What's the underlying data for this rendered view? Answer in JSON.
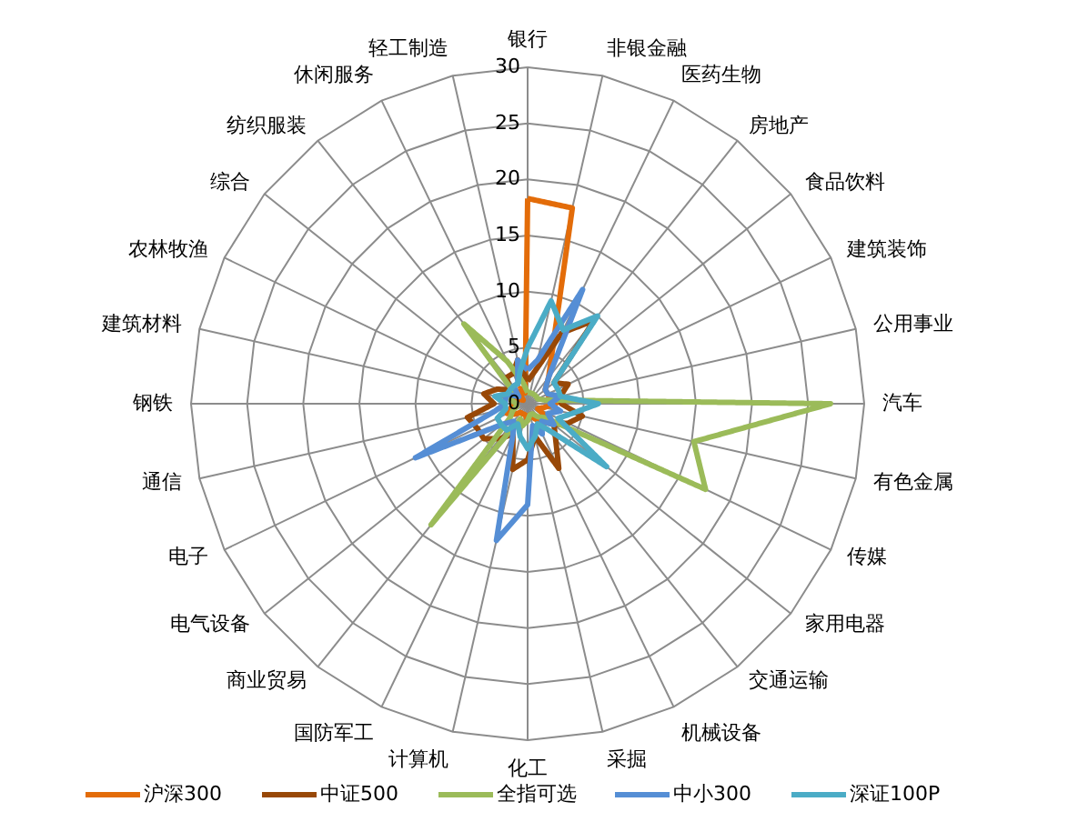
{
  "chart_data": {
    "type": "radar",
    "categories": [
      "银行",
      "非银金融",
      "医药生物",
      "房地产",
      "食品饮料",
      "建筑装饰",
      "公用事业",
      "汽车",
      "有色金属",
      "传媒",
      "家用电器",
      "交通运输",
      "机械设备",
      "采掘",
      "化工",
      "计算机",
      "国防军工",
      "商业贸易",
      "电气设备",
      "电子",
      "通信",
      "钢铁",
      "建筑材料",
      "农林牧渔",
      "综合",
      "纺织服装",
      "休闲服务",
      "轻工制造"
    ],
    "series": [
      {
        "name": "沪深300",
        "color": "#e36c09",
        "values": [
          18.3,
          17.9,
          5,
          3,
          2,
          2,
          2,
          2.5,
          1.5,
          1,
          3,
          2,
          1.5,
          1,
          1.5,
          1,
          1,
          1,
          1.5,
          2,
          1.5,
          1,
          1.5,
          1,
          0.5,
          1,
          1.5,
          1
        ]
      },
      {
        "name": "中证500",
        "color": "#984807",
        "values": [
          2,
          3,
          7,
          9.5,
          3,
          4,
          3,
          3,
          5,
          4,
          3,
          4,
          6.4,
          3,
          5,
          6,
          3,
          4,
          5,
          5,
          5.5,
          3,
          4,
          3,
          2,
          3,
          3,
          4
        ]
      },
      {
        "name": "全指可选",
        "color": "#9bbb59",
        "values": [
          1,
          1,
          1,
          1,
          1,
          1,
          1.5,
          27,
          15.2,
          17.6,
          2,
          1.5,
          1,
          1,
          1.5,
          2,
          1.5,
          13.8,
          2,
          1.5,
          1,
          1,
          1.5,
          2,
          1.5,
          9.1,
          4.2,
          2
        ]
      },
      {
        "name": "中小300",
        "color": "#558ed5",
        "values": [
          3,
          4,
          11.3,
          3,
          2,
          2,
          3,
          2,
          3,
          2,
          3,
          2,
          3,
          2,
          9,
          12.5,
          3,
          2,
          3,
          11.1,
          3,
          2,
          2,
          2,
          1,
          2,
          2,
          4
        ]
      },
      {
        "name": "深证100P",
        "color": "#4bacc6",
        "values": [
          5,
          9.4,
          7.3,
          10,
          3,
          3,
          3,
          6.3,
          4,
          3,
          9,
          3,
          2,
          3,
          4,
          3,
          2,
          3,
          3,
          3,
          2,
          2,
          3,
          2,
          2,
          2,
          2,
          3
        ]
      }
    ],
    "ylim": [
      0,
      30
    ],
    "yticks": [
      0,
      5,
      10,
      15,
      20,
      25,
      30
    ],
    "grid": true,
    "legend": "bottom",
    "line_style": "solid",
    "marker": "none"
  }
}
